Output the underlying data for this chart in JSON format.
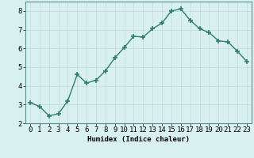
{
  "x": [
    0,
    1,
    2,
    3,
    4,
    5,
    6,
    7,
    8,
    9,
    10,
    11,
    12,
    13,
    14,
    15,
    16,
    17,
    18,
    19,
    20,
    21,
    22,
    23
  ],
  "y": [
    3.1,
    2.9,
    2.4,
    2.5,
    3.2,
    4.6,
    4.15,
    4.3,
    4.8,
    5.5,
    6.05,
    6.65,
    6.6,
    7.05,
    7.35,
    8.0,
    8.1,
    7.5,
    7.05,
    6.85,
    6.4,
    6.35,
    5.85,
    5.3
  ],
  "line_color": "#2e7d6e",
  "marker": "+",
  "marker_size": 4,
  "linewidth": 1.0,
  "bg_color": "#d8f0f0",
  "grid_color": "#c0dada",
  "xlabel": "Humidex (Indice chaleur)",
  "xlim": [
    -0.5,
    23.5
  ],
  "ylim": [
    2.0,
    8.5
  ],
  "yticks": [
    2,
    3,
    4,
    5,
    6,
    7,
    8
  ],
  "xticks": [
    0,
    1,
    2,
    3,
    4,
    5,
    6,
    7,
    8,
    9,
    10,
    11,
    12,
    13,
    14,
    15,
    16,
    17,
    18,
    19,
    20,
    21,
    22,
    23
  ],
  "xlabel_fontsize": 6.5,
  "tick_fontsize": 6.5
}
